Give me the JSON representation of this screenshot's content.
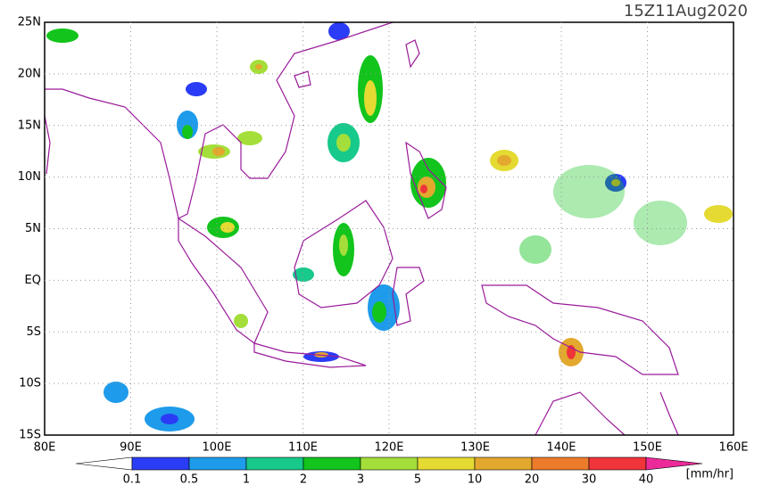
{
  "map": {
    "title": "15Z11Aug2020",
    "lat_labels": [
      "25N",
      "20N",
      "15N",
      "10N",
      "5N",
      "EQ",
      "5S",
      "10S",
      "15S"
    ],
    "lon_labels": [
      "80E",
      "90E",
      "100E",
      "110E",
      "120E",
      "130E",
      "140E",
      "150E",
      "160E"
    ]
  },
  "colorbar": {
    "labels": [
      0.1,
      0.5,
      1,
      2,
      3,
      5,
      10,
      20,
      30,
      40
    ],
    "colors": [
      "#ffffff",
      "#2a3cf5",
      "#1e9bea",
      "#17c98a",
      "#12c41c",
      "#a4de3a",
      "#e4da32",
      "#e3a82e",
      "#ec7b2a",
      "#f0353a",
      "#ec2a9a"
    ],
    "unit": "[mm/hr]"
  }
}
